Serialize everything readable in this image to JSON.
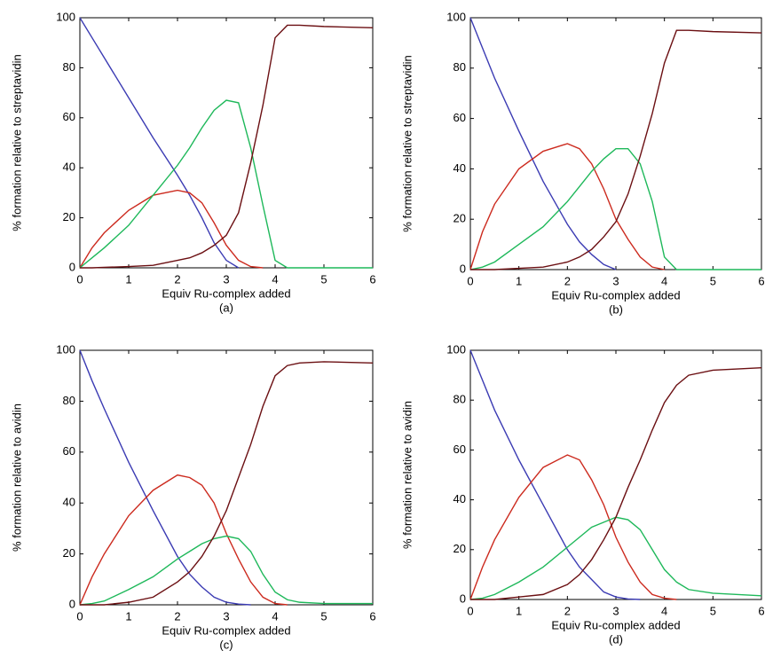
{
  "chart_data": [
    {
      "type": "line",
      "x_label": "Equiv Ru-complex added",
      "y_label": "% formation relative to streptavidin",
      "caption": "(a)",
      "x": [
        0,
        0.25,
        0.5,
        1,
        1.5,
        2,
        2.25,
        2.5,
        2.75,
        3,
        3.25,
        3.5,
        3.75,
        4,
        4.25,
        4.5,
        5,
        6
      ],
      "xlim": [
        0,
        6
      ],
      "ylim": [
        0,
        100
      ],
      "xticks": [
        0,
        1,
        2,
        3,
        4,
        5,
        6
      ],
      "yticks": [
        0,
        20,
        40,
        60,
        80,
        100
      ],
      "series": [
        {
          "color": "#3b3bb3",
          "values": [
            100,
            92,
            84,
            68,
            52,
            37,
            29,
            20,
            10,
            3,
            0,
            null,
            null,
            null,
            null,
            null,
            null,
            null
          ]
        },
        {
          "color": "#cc2a1e",
          "values": [
            0,
            8,
            14,
            23,
            29,
            31,
            30,
            26,
            18,
            9,
            3,
            0.5,
            0,
            null,
            null,
            null,
            null,
            null
          ]
        },
        {
          "color": "#1eb85a",
          "values": [
            0,
            4,
            8,
            17,
            29,
            41,
            48,
            56,
            63,
            67,
            66,
            48,
            25,
            3,
            0,
            0,
            0,
            0
          ]
        },
        {
          "color": "#6b0f12",
          "values": [
            0,
            0,
            0.2,
            0.5,
            1,
            3,
            4,
            6,
            9,
            13,
            22,
            42,
            65,
            92,
            97,
            97,
            96.5,
            96
          ]
        }
      ]
    },
    {
      "type": "line",
      "x_label": "Equiv Ru-complex added",
      "y_label": "% formation relative to streptavidin",
      "caption": "(b)",
      "x": [
        0,
        0.25,
        0.5,
        1,
        1.5,
        2,
        2.25,
        2.5,
        2.75,
        3,
        3.25,
        3.5,
        3.75,
        4,
        4.25,
        4.5,
        5,
        6
      ],
      "xlim": [
        0,
        6
      ],
      "ylim": [
        0,
        100
      ],
      "xticks": [
        0,
        1,
        2,
        3,
        4,
        5,
        6
      ],
      "yticks": [
        0,
        20,
        40,
        60,
        80,
        100
      ],
      "series": [
        {
          "color": "#3b3bb3",
          "values": [
            100,
            88,
            76,
            55,
            35,
            18,
            11,
            6,
            2,
            0,
            null,
            null,
            null,
            null,
            null,
            null,
            null,
            null
          ]
        },
        {
          "color": "#cc2a1e",
          "values": [
            0,
            15,
            26,
            40,
            47,
            50,
            48,
            42,
            32,
            20,
            12,
            5,
            1,
            0,
            null,
            null,
            null,
            null
          ]
        },
        {
          "color": "#1eb85a",
          "values": [
            0,
            1,
            3,
            10,
            17,
            27,
            33,
            39,
            44,
            48,
            48,
            42,
            27,
            5,
            0,
            0,
            0,
            0
          ]
        },
        {
          "color": "#6b0f12",
          "values": [
            0,
            0,
            0,
            0.5,
            1,
            3,
            5,
            8,
            13,
            19,
            30,
            45,
            62,
            82,
            95,
            95,
            94.5,
            94
          ]
        }
      ]
    },
    {
      "type": "line",
      "x_label": "Equiv Ru-complex added",
      "y_label": "% formation relative to avidin",
      "caption": "(c)",
      "x": [
        0,
        0.25,
        0.5,
        1,
        1.5,
        2,
        2.25,
        2.5,
        2.75,
        3,
        3.25,
        3.5,
        3.75,
        4,
        4.25,
        4.5,
        5,
        6
      ],
      "xlim": [
        0,
        6
      ],
      "ylim": [
        0,
        100
      ],
      "xticks": [
        0,
        1,
        2,
        3,
        4,
        5,
        6
      ],
      "yticks": [
        0,
        20,
        40,
        60,
        80,
        100
      ],
      "series": [
        {
          "color": "#3b3bb3",
          "values": [
            100,
            88,
            77,
            56,
            37,
            19,
            12,
            7,
            3,
            1,
            0.3,
            0,
            null,
            null,
            null,
            null,
            null,
            null
          ]
        },
        {
          "color": "#cc2a1e",
          "values": [
            0,
            11,
            20,
            35,
            45,
            51,
            50,
            47,
            40,
            28,
            18,
            9,
            3,
            0.5,
            0,
            null,
            null,
            null
          ]
        },
        {
          "color": "#1eb85a",
          "values": [
            0,
            0.5,
            1.5,
            6,
            11,
            18,
            21,
            24,
            26,
            27,
            26,
            21,
            12,
            5,
            2,
            1,
            0.5,
            0.5
          ]
        },
        {
          "color": "#6b0f12",
          "values": [
            0,
            0,
            0,
            1,
            3,
            9,
            13,
            19,
            27,
            37,
            50,
            63,
            78,
            90,
            94,
            95,
            95.5,
            95
          ]
        }
      ]
    },
    {
      "type": "line",
      "x_label": "Equiv Ru-complex added",
      "y_label": "% formation relative to avidin",
      "caption": "(d)",
      "x": [
        0,
        0.25,
        0.5,
        1,
        1.5,
        2,
        2.25,
        2.5,
        2.75,
        3,
        3.25,
        3.5,
        3.75,
        4,
        4.25,
        4.5,
        5,
        6
      ],
      "xlim": [
        0,
        6
      ],
      "ylim": [
        0,
        100
      ],
      "xticks": [
        0,
        1,
        2,
        3,
        4,
        5,
        6
      ],
      "yticks": [
        0,
        20,
        40,
        60,
        80,
        100
      ],
      "series": [
        {
          "color": "#3b3bb3",
          "values": [
            100,
            88,
            76,
            56,
            38,
            20,
            13,
            8,
            3,
            1,
            0.2,
            0,
            null,
            null,
            null,
            null,
            null,
            null
          ]
        },
        {
          "color": "#cc2a1e",
          "values": [
            0,
            13,
            24,
            41,
            53,
            58,
            56,
            48,
            38,
            25,
            15,
            7,
            2,
            0.5,
            0,
            null,
            null,
            null
          ]
        },
        {
          "color": "#1eb85a",
          "values": [
            0,
            0.5,
            2,
            7,
            13,
            21,
            25,
            29,
            31,
            33,
            32,
            28,
            20,
            12,
            7,
            4,
            2.5,
            1.5
          ]
        },
        {
          "color": "#6b0f12",
          "values": [
            0,
            0,
            0,
            1,
            2,
            6,
            10,
            16,
            24,
            33,
            45,
            56,
            68,
            79,
            86,
            90,
            92,
            93
          ]
        }
      ]
    }
  ]
}
